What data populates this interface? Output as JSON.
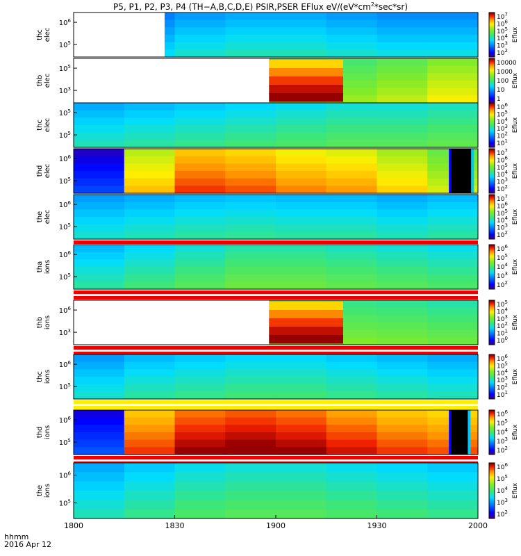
{
  "chart_data": {
    "type": "heatmap",
    "title": {
      "before": "P5, P1, P2, P3, P4 (TH−A,B,C,D,E) PSIR,PSER EFlux eV/(eV*cm",
      "sup": "2",
      "after": "*sec*sr)"
    },
    "xaxis": {
      "ticks": [
        "1800",
        "1830",
        "1900",
        "1930",
        "2000"
      ],
      "label_line1": "hhmm",
      "label_line2": "2016 Apr 12"
    },
    "colorbar_label": "Eflux",
    "panels": [
      {
        "ylabel1": "thc",
        "ylabel2": "elec",
        "yticks": [
          "10^6",
          "10^5"
        ],
        "cbar_ticks": [
          "10^7",
          "10^6",
          "10^5",
          "10^4",
          "10^3",
          "10^2"
        ],
        "profile": [
          0.28,
          0.32,
          0.36,
          0.38,
          0.38,
          0.36,
          0.34,
          0.34
        ],
        "blank_until_min": 27,
        "black_from_min": null,
        "black_to_min": null,
        "warm_block": null,
        "bottom_bar": null
      },
      {
        "ylabel1": "thb",
        "ylabel2": "elec",
        "yticks": [
          "10^5",
          "10^3"
        ],
        "cbar_ticks": [
          "10000",
          "1000",
          "100",
          "10",
          "1"
        ],
        "profile": [
          0.56,
          0.56,
          0.56,
          0.55,
          0.56,
          0.58,
          0.62,
          0.68
        ],
        "blank_until_min": 58,
        "black_from_min": null,
        "black_to_min": null,
        "warm_block": {
          "start_min": 58,
          "end_min": 80
        },
        "bottom_bar": null
      },
      {
        "ylabel1": "thc",
        "ylabel2": "elec",
        "yticks": [
          "10^5",
          "10^5"
        ],
        "cbar_ticks": [
          "10^6",
          "10^5",
          "10^4",
          "10^3",
          "10^2",
          "10^1"
        ],
        "profile": [
          0.38,
          0.4,
          0.42,
          0.44,
          0.46,
          0.48,
          0.48,
          0.5
        ],
        "blank_until_min": null,
        "black_from_min": null,
        "black_to_min": null,
        "warm_block": null,
        "bottom_bar": null
      },
      {
        "ylabel1": "thd",
        "ylabel2": "elec",
        "yticks": [
          "10^6",
          "10^5"
        ],
        "cbar_ticks": [
          "10^7",
          "10^6",
          "10^5",
          "10^4",
          "10^3",
          "10^2"
        ],
        "profile": [
          0.12,
          0.74,
          0.86,
          0.84,
          0.8,
          0.78,
          0.72,
          0.64
        ],
        "blank_until_min": null,
        "black_from_min": 112,
        "black_to_min": 118,
        "warm_block": null,
        "bottom_bar": null
      },
      {
        "ylabel1": "the",
        "ylabel2": "elec",
        "yticks": [
          "10^6",
          "10^5"
        ],
        "cbar_ticks": [
          "10^7",
          "10^6",
          "10^5",
          "10^4",
          "10^3",
          "10^2"
        ],
        "profile": [
          0.36,
          0.38,
          0.4,
          0.41,
          0.4,
          0.4,
          0.38,
          0.4
        ],
        "blank_until_min": null,
        "black_from_min": null,
        "black_to_min": null,
        "warm_block": null,
        "bottom_bar": "red"
      },
      {
        "ylabel1": "tha",
        "ylabel2": "ions",
        "yticks": [
          "10^6",
          "10^5"
        ],
        "cbar_ticks": [
          "10^6",
          "10^5",
          "10^4",
          "10^3",
          "10^2"
        ],
        "profile": [
          0.4,
          0.44,
          0.48,
          0.52,
          0.52,
          0.5,
          0.48,
          0.46
        ],
        "blank_until_min": null,
        "black_from_min": null,
        "black_to_min": null,
        "warm_block": null,
        "bottom_bar": "red"
      },
      {
        "ylabel1": "thb",
        "ylabel2": "ions",
        "yticks": [
          "10^6",
          "10^3"
        ],
        "cbar_ticks": [
          "10^5",
          "10^4",
          "10^3",
          "10^2",
          "10^1",
          "10^0"
        ],
        "profile": [
          0.52,
          0.54,
          0.56,
          0.56,
          0.56,
          0.55,
          0.54,
          0.52
        ],
        "blank_until_min": 58,
        "black_from_min": null,
        "black_to_min": null,
        "warm_block": {
          "start_min": 58,
          "end_min": 80
        },
        "bottom_bar": "red"
      },
      {
        "ylabel1": "thc",
        "ylabel2": "ions",
        "yticks": [
          "10^6",
          "10^5"
        ],
        "cbar_ticks": [
          "10^6",
          "10^5",
          "10^4",
          "10^3",
          "10^2",
          "10^1"
        ],
        "profile": [
          0.36,
          0.4,
          0.42,
          0.44,
          0.44,
          0.42,
          0.4,
          0.38
        ],
        "blank_until_min": null,
        "black_from_min": null,
        "black_to_min": null,
        "warm_block": null,
        "bottom_bar": "yellow"
      },
      {
        "ylabel1": "thd",
        "ylabel2": "ions",
        "yticks": [
          "10^6",
          "10^5"
        ],
        "cbar_ticks": [
          "10^6",
          "10^5",
          "10^4",
          "10^3",
          "10^2"
        ],
        "profile": [
          0.14,
          0.86,
          0.94,
          0.96,
          0.94,
          0.9,
          0.86,
          0.84
        ],
        "blank_until_min": null,
        "black_from_min": 112,
        "black_to_min": 117,
        "warm_block": null,
        "bottom_bar": "red"
      },
      {
        "ylabel1": "the",
        "ylabel2": "ions",
        "yticks": [
          "10^6",
          "10^5"
        ],
        "cbar_ticks": [
          "10^6",
          "10^5",
          "10^4",
          "10^3",
          "10^2"
        ],
        "profile": [
          0.38,
          0.42,
          0.46,
          0.48,
          0.48,
          0.46,
          0.44,
          0.42
        ],
        "blank_until_min": null,
        "black_from_min": null,
        "black_to_min": null,
        "warm_block": null,
        "bottom_bar": null
      }
    ]
  }
}
